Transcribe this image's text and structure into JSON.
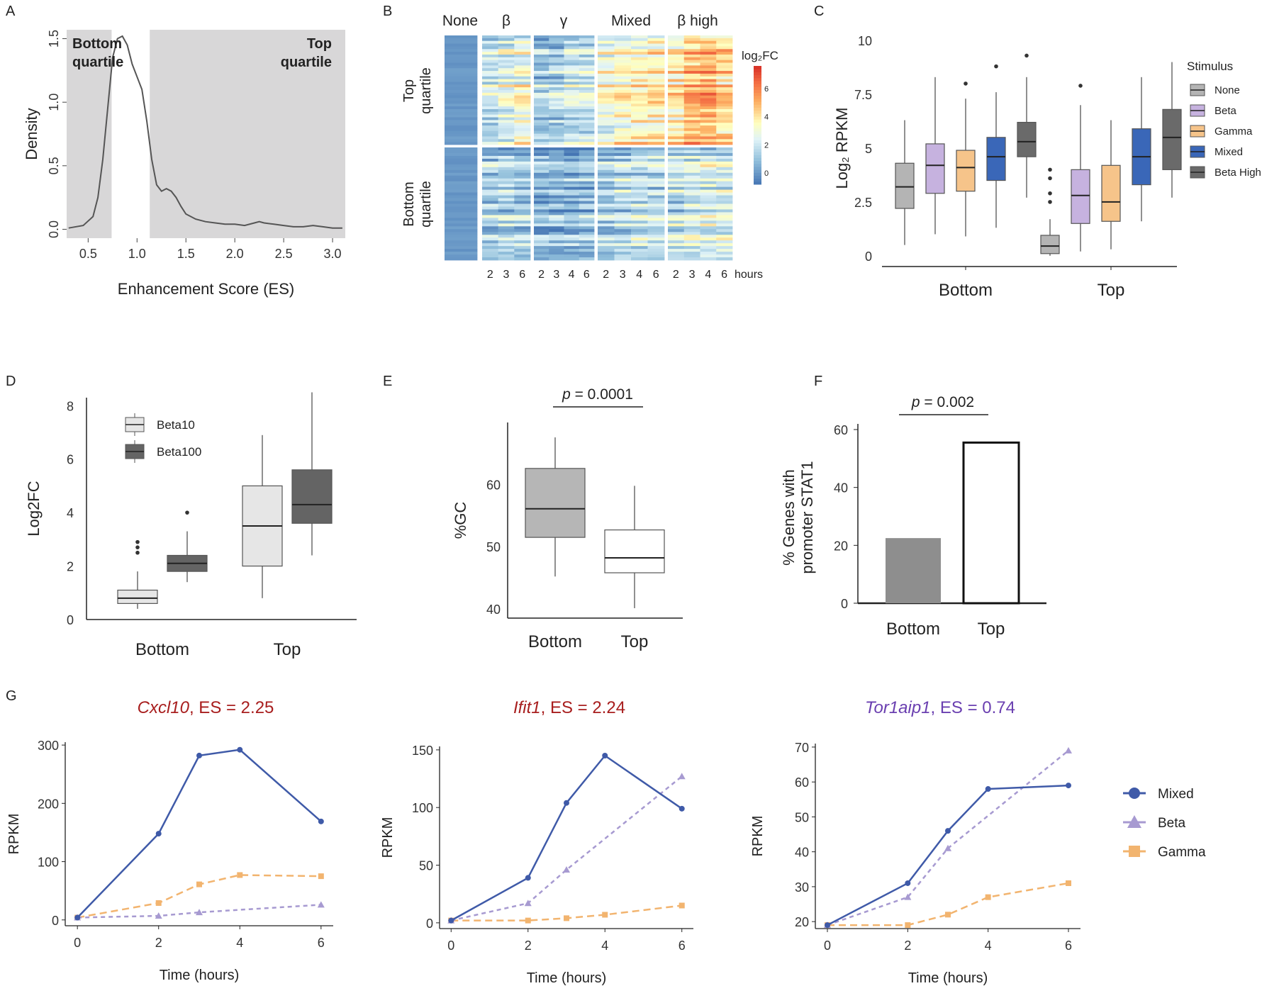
{
  "colors": {
    "bottom": "#6a3fb0",
    "top": "#a81e1e",
    "mixed": "#3f5aa8",
    "beta": "#a79ad1",
    "gamma": "#f2b46f",
    "none_box": "#b4b4b4",
    "beta_box": "#c6b2df",
    "gamma_box": "#f6c48a",
    "mixed_box": "#3a67b8",
    "betahigh_box": "#6a6a6a",
    "shade": "#d8d7d8",
    "beta10": "#e6e6e6",
    "beta100": "#646464",
    "gc_bottom": "#b6b6b6",
    "gc_top": "#ffffff",
    "stat_bottom": "#8e8e8e",
    "stat_top": "#ffffff"
  },
  "chart_data": [
    {
      "id": "A",
      "type": "area",
      "panel_label": "A",
      "xlabel": "Enhancement Score (ES)",
      "ylabel": "Density",
      "xlim": [
        0.28,
        3.13
      ],
      "ylim": [
        -0.07,
        1.57
      ],
      "xticks": [
        0.5,
        1.0,
        1.5,
        2.0,
        2.5,
        3.0
      ],
      "xtick_labels": [
        "0.5",
        "1.0",
        "1.5",
        "2.0",
        "2.5",
        "3.0"
      ],
      "yticks": [
        0.0,
        0.5,
        1.0,
        1.5
      ],
      "ytick_labels": [
        "0.0",
        "0.5",
        "1.0",
        "1.5"
      ],
      "bottom_quartile_max": 0.74,
      "top_quartile_min": 1.13,
      "annotations": {
        "bottom_line1": "Bottom",
        "bottom_line2": "quartile",
        "top_line1": "Top",
        "top_line2": "quartile"
      },
      "x": [
        0.3,
        0.45,
        0.55,
        0.6,
        0.65,
        0.7,
        0.75,
        0.8,
        0.85,
        0.9,
        0.95,
        1.0,
        1.05,
        1.1,
        1.15,
        1.2,
        1.25,
        1.3,
        1.35,
        1.4,
        1.45,
        1.5,
        1.6,
        1.7,
        1.8,
        1.9,
        2.0,
        2.1,
        2.2,
        2.25,
        2.3,
        2.4,
        2.5,
        2.6,
        2.7,
        2.8,
        2.9,
        3.0,
        3.1
      ],
      "y": [
        0.01,
        0.03,
        0.1,
        0.25,
        0.55,
        0.95,
        1.35,
        1.5,
        1.52,
        1.45,
        1.3,
        1.2,
        1.1,
        0.85,
        0.55,
        0.35,
        0.3,
        0.32,
        0.3,
        0.25,
        0.18,
        0.12,
        0.08,
        0.06,
        0.05,
        0.04,
        0.04,
        0.03,
        0.05,
        0.06,
        0.05,
        0.04,
        0.03,
        0.02,
        0.02,
        0.03,
        0.02,
        0.01,
        0.01
      ]
    },
    {
      "id": "B",
      "type": "heatmap",
      "panel_label": "B",
      "group_labels": [
        "None",
        "β",
        "γ",
        "Mixed",
        "β high"
      ],
      "group_hours": [
        [],
        [
          "2",
          "3",
          "6"
        ],
        [
          "2",
          "3",
          "4",
          "6"
        ],
        [
          "2",
          "3",
          "4",
          "6"
        ],
        [
          "2",
          "3",
          "4",
          "6"
        ]
      ],
      "hours_label": "hours",
      "row_labels": {
        "top_line1": "Top",
        "top_line2": "quartile",
        "bottom_line1": "Bottom",
        "bottom_line2": "quartile"
      },
      "colorbar": {
        "title": "log₂FC",
        "ticks": [
          0,
          2,
          4,
          6
        ],
        "tick_labels": [
          "0",
          "2",
          "4",
          "6"
        ],
        "range": [
          -0.8,
          7.6
        ]
      },
      "mean_log2fc_top": [
        0.0,
        2.0,
        2.6,
        3.1,
        1.4,
        1.6,
        2.0,
        2.2,
        3.0,
        3.5,
        3.8,
        4.0,
        4.0,
        4.8,
        5.2,
        4.6
      ],
      "mean_log2fc_bottom": [
        0.0,
        1.0,
        1.1,
        1.2,
        0.6,
        0.6,
        0.8,
        0.9,
        1.2,
        1.4,
        1.6,
        1.7,
        1.7,
        2.0,
        2.2,
        2.0
      ]
    },
    {
      "id": "C",
      "type": "box",
      "panel_label": "C",
      "ylabel": "Log₂ RPKM",
      "ylim": [
        -0.5,
        10.5
      ],
      "yticks": [
        0,
        2.5,
        5,
        7.5,
        10
      ],
      "ytick_labels": [
        "0",
        "2.5",
        "5",
        "7.5",
        "10"
      ],
      "categories": [
        "Bottom",
        "Top"
      ],
      "legend_title": "Stimulus",
      "series": [
        {
          "name": "None",
          "stats": [
            {
              "min": 0.5,
              "q1": 2.2,
              "median": 3.2,
              "q3": 4.3,
              "max": 6.3,
              "outliers": []
            },
            {
              "min": 0.0,
              "q1": 0.1,
              "median": 0.45,
              "q3": 0.95,
              "max": 1.7,
              "outliers": [
                2.5,
                2.9,
                3.6,
                4.0
              ]
            }
          ]
        },
        {
          "name": "Beta",
          "stats": [
            {
              "min": 1.0,
              "q1": 2.9,
              "median": 4.2,
              "q3": 5.2,
              "max": 8.3,
              "outliers": []
            },
            {
              "min": 0.2,
              "q1": 1.5,
              "median": 2.8,
              "q3": 4.0,
              "max": 7.0,
              "outliers": [
                7.9
              ]
            }
          ]
        },
        {
          "name": "Gamma",
          "stats": [
            {
              "min": 0.9,
              "q1": 3.0,
              "median": 4.1,
              "q3": 4.9,
              "max": 7.3,
              "outliers": [
                8.0
              ]
            },
            {
              "min": 0.3,
              "q1": 1.6,
              "median": 2.5,
              "q3": 4.2,
              "max": 6.3,
              "outliers": []
            }
          ]
        },
        {
          "name": "Mixed",
          "stats": [
            {
              "min": 1.3,
              "q1": 3.5,
              "median": 4.6,
              "q3": 5.5,
              "max": 7.6,
              "outliers": [
                8.8
              ]
            },
            {
              "min": 1.6,
              "q1": 3.3,
              "median": 4.6,
              "q3": 5.9,
              "max": 8.3,
              "outliers": []
            }
          ]
        },
        {
          "name": "Beta High",
          "stats": [
            {
              "min": 2.7,
              "q1": 4.6,
              "median": 5.3,
              "q3": 6.2,
              "max": 8.3,
              "outliers": [
                9.3
              ]
            },
            {
              "min": 2.7,
              "q1": 4.0,
              "median": 5.5,
              "q3": 6.8,
              "max": 9.0,
              "outliers": []
            }
          ]
        }
      ]
    },
    {
      "id": "D",
      "type": "box",
      "panel_label": "D",
      "ylabel": "Log2FC",
      "ylim": [
        0,
        8.3
      ],
      "yticks": [
        0,
        2,
        4,
        6,
        8
      ],
      "ytick_labels": [
        "0",
        "2",
        "4",
        "6",
        "8"
      ],
      "categories": [
        "Bottom",
        "Top"
      ],
      "series": [
        {
          "name": "Beta10",
          "stats": [
            {
              "min": 0.4,
              "q1": 0.6,
              "median": 0.8,
              "q3": 1.1,
              "max": 1.8,
              "outliers": [
                2.5,
                2.7,
                2.9
              ]
            },
            {
              "min": 0.8,
              "q1": 2.0,
              "median": 3.5,
              "q3": 5.0,
              "max": 6.9,
              "outliers": []
            }
          ]
        },
        {
          "name": "Beta100",
          "stats": [
            {
              "min": 1.4,
              "q1": 1.8,
              "median": 2.1,
              "q3": 2.4,
              "max": 3.3,
              "outliers": [
                4.0
              ]
            },
            {
              "min": 2.4,
              "q1": 3.6,
              "median": 4.3,
              "q3": 5.6,
              "max": 8.5,
              "outliers": []
            }
          ]
        }
      ]
    },
    {
      "id": "E",
      "type": "box",
      "panel_label": "E",
      "ylabel": "%GC",
      "ylim": [
        38.5,
        70
      ],
      "yticks": [
        40,
        50,
        60
      ],
      "ytick_labels": [
        "40",
        "50",
        "60"
      ],
      "categories": [
        "Bottom",
        "Top"
      ],
      "stats": [
        {
          "min": 45.2,
          "q1": 51.5,
          "median": 56.1,
          "q3": 62.6,
          "max": 67.6,
          "outliers": []
        },
        {
          "min": 40.1,
          "q1": 45.8,
          "median": 48.2,
          "q3": 52.7,
          "max": 59.8,
          "outliers": []
        }
      ],
      "significance": {
        "p_prefix": "p",
        "p_value": " = 0.0001"
      }
    },
    {
      "id": "F",
      "type": "bar",
      "panel_label": "F",
      "ylabel_line1": "% Genes with",
      "ylabel_line2": "promoter STAT1",
      "ylim": [
        0,
        62
      ],
      "yticks": [
        0,
        20,
        40,
        60
      ],
      "ytick_labels": [
        "0",
        "20",
        "40",
        "60"
      ],
      "categories": [
        "Bottom",
        "Top"
      ],
      "values": [
        22.5,
        55.5
      ],
      "significance": {
        "p_prefix": "p",
        "p_value": " = 0.002"
      }
    },
    {
      "id": "G1",
      "type": "line",
      "panel_label": "G",
      "title_gene": "Cxcl10",
      "title_rest": ", ES = 2.25",
      "title_color": "top",
      "xlabel": "Time (hours)",
      "ylabel": "RPKM",
      "xlim": [
        -0.3,
        6.3
      ],
      "ylim": [
        -10,
        305
      ],
      "xticks": [
        0,
        2,
        4,
        6
      ],
      "yticks": [
        0,
        100,
        200,
        300
      ],
      "x": [
        0,
        2,
        3,
        4,
        6
      ],
      "series": [
        {
          "name": "Mixed",
          "values": [
            4,
            148,
            282,
            292,
            169
          ]
        },
        {
          "name": "Beta",
          "values": [
            4,
            7,
            13,
            null,
            26
          ]
        },
        {
          "name": "Gamma",
          "values": [
            4,
            29,
            61,
            77,
            75
          ]
        }
      ]
    },
    {
      "id": "G2",
      "type": "line",
      "title_gene": "Ifit1",
      "title_rest": ", ES = 2.24",
      "title_color": "top",
      "xlabel": "Time (hours)",
      "ylabel": "RPKM",
      "xlim": [
        -0.3,
        6.3
      ],
      "ylim": [
        -5,
        153
      ],
      "xticks": [
        0,
        2,
        4,
        6
      ],
      "yticks": [
        0,
        50,
        100,
        150
      ],
      "x": [
        0,
        2,
        3,
        4,
        6
      ],
      "series": [
        {
          "name": "Mixed",
          "values": [
            2,
            39,
            104,
            145,
            99
          ]
        },
        {
          "name": "Beta",
          "values": [
            2,
            17,
            46,
            null,
            127
          ]
        },
        {
          "name": "Gamma",
          "values": [
            2,
            2,
            4,
            7,
            15
          ]
        }
      ]
    },
    {
      "id": "G3",
      "type": "line",
      "title_gene": "Tor1aip1",
      "title_rest": ", ES = 0.74",
      "title_color": "bottom",
      "xlabel": "Time (hours)",
      "ylabel": "RPKM",
      "xlim": [
        -0.3,
        6.3
      ],
      "ylim": [
        18,
        71
      ],
      "xticks": [
        0,
        2,
        4,
        6
      ],
      "yticks": [
        20,
        30,
        40,
        50,
        60,
        70
      ],
      "x": [
        0,
        2,
        3,
        4,
        6
      ],
      "series": [
        {
          "name": "Mixed",
          "values": [
            19,
            31,
            46,
            58,
            59
          ]
        },
        {
          "name": "Beta",
          "values": [
            19,
            27,
            41,
            null,
            69
          ]
        },
        {
          "name": "Gamma",
          "values": [
            19,
            19,
            22,
            27,
            31
          ]
        }
      ],
      "legend": [
        "Mixed",
        "Beta",
        "Gamma"
      ]
    }
  ]
}
